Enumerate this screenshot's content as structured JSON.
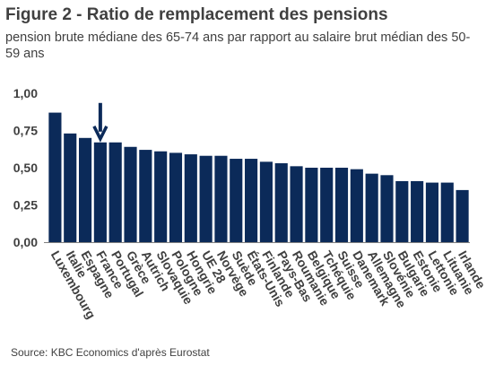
{
  "title": "Figure 2 - Ratio de remplacement des pensions",
  "subtitle": "pension brute médiane des 65-74 ans par rapport au salaire brut médian des 50-59 ans",
  "source": "Source: KBC Economics d'après Eurostat",
  "colors": {
    "bar": "#0b2a59",
    "arrow": "#0b2a59",
    "axis": "#808080"
  },
  "chart_data": {
    "type": "bar",
    "categories": [
      "Luxembourg",
      "Italie",
      "Espagne",
      "France",
      "Portugal",
      "Grèce",
      "Autrich",
      "Slovaquie",
      "Pologne",
      "Hongrie",
      "UE 28",
      "Norvège",
      "Suède",
      "États-Unis",
      "Finlande",
      "Pays-Bas",
      "Roumanie",
      "Belgique",
      "Tchéquie",
      "Suisse",
      "Danemark",
      "Allemagne",
      "Slovénie",
      "Bulgarie",
      "Estonie",
      "Lettonie",
      "Lituanie",
      "Irlande"
    ],
    "values": [
      0.87,
      0.73,
      0.7,
      0.67,
      0.67,
      0.64,
      0.62,
      0.61,
      0.6,
      0.59,
      0.58,
      0.58,
      0.56,
      0.56,
      0.54,
      0.53,
      0.51,
      0.5,
      0.5,
      0.5,
      0.49,
      0.46,
      0.45,
      0.41,
      0.41,
      0.4,
      0.4,
      0.35
    ],
    "yticks": [
      "0,00",
      "0,25",
      "0,50",
      "0,75",
      "1,00"
    ],
    "ylim": [
      0,
      1
    ],
    "grid": false,
    "annotation": {
      "type": "arrow",
      "target_category": "France"
    }
  }
}
